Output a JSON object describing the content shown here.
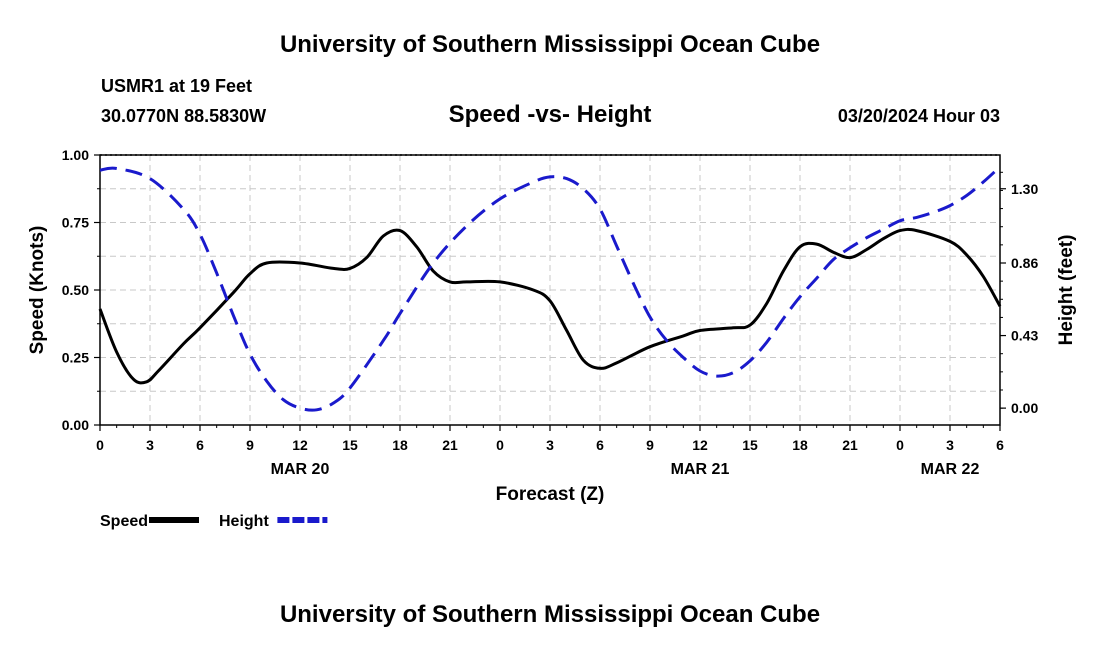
{
  "page": {
    "title_top": "University of Southern Mississippi Ocean Cube",
    "title_bottom": "University of Southern Mississippi Ocean Cube",
    "station": "USMR1 at 19 Feet",
    "coords": "30.0770N  88.5830W",
    "chart_title": "Speed -vs- Height",
    "datetime": "03/20/2024 Hour 03"
  },
  "chart_data": {
    "type": "line",
    "title": "Speed -vs- Height",
    "xlabel": "Forecast (Z)",
    "ylabel_left": "Speed (Knots)",
    "ylabel_right": "Height (feet)",
    "x_hours": [
      0,
      54
    ],
    "x_ticks": [
      {
        "h": 0,
        "label": "0"
      },
      {
        "h": 3,
        "label": "3"
      },
      {
        "h": 6,
        "label": "6"
      },
      {
        "h": 9,
        "label": "9"
      },
      {
        "h": 12,
        "label": "12"
      },
      {
        "h": 15,
        "label": "15"
      },
      {
        "h": 18,
        "label": "18"
      },
      {
        "h": 21,
        "label": "21"
      },
      {
        "h": 24,
        "label": "0"
      },
      {
        "h": 27,
        "label": "3"
      },
      {
        "h": 30,
        "label": "6"
      },
      {
        "h": 33,
        "label": "9"
      },
      {
        "h": 36,
        "label": "12"
      },
      {
        "h": 39,
        "label": "15"
      },
      {
        "h": 42,
        "label": "18"
      },
      {
        "h": 45,
        "label": "21"
      },
      {
        "h": 48,
        "label": "0"
      },
      {
        "h": 51,
        "label": "3"
      },
      {
        "h": 54,
        "label": "6"
      }
    ],
    "date_labels": [
      {
        "h": 12,
        "label": "MAR 20"
      },
      {
        "h": 36,
        "label": "MAR 21"
      },
      {
        "h": 51,
        "label": "MAR 22"
      }
    ],
    "ylim_left": [
      0,
      1
    ],
    "yticks_left": [
      {
        "v": 0,
        "label": "0.00"
      },
      {
        "v": 0.25,
        "label": "0.25"
      },
      {
        "v": 0.5,
        "label": "0.50"
      },
      {
        "v": 0.75,
        "label": "0.75"
      },
      {
        "v": 1.0,
        "label": "1.00"
      }
    ],
    "ylim_right": [
      -0.1,
      1.5
    ],
    "yticks_right": [
      {
        "v": 0.0,
        "label": "0.00"
      },
      {
        "v": 0.43,
        "label": "0.43"
      },
      {
        "v": 0.86,
        "label": "0.86"
      },
      {
        "v": 1.3,
        "label": "1.30"
      }
    ],
    "grid": true,
    "series": [
      {
        "name": "Speed",
        "axis": "left",
        "color": "#000000",
        "style": "solid",
        "points": [
          [
            0,
            0.43
          ],
          [
            1,
            0.27
          ],
          [
            2,
            0.17
          ],
          [
            2.8,
            0.16
          ],
          [
            3.5,
            0.2
          ],
          [
            5,
            0.3
          ],
          [
            6,
            0.36
          ],
          [
            8,
            0.49
          ],
          [
            9,
            0.56
          ],
          [
            10,
            0.6
          ],
          [
            12,
            0.6
          ],
          [
            14,
            0.58
          ],
          [
            15,
            0.58
          ],
          [
            16,
            0.62
          ],
          [
            17,
            0.7
          ],
          [
            18,
            0.72
          ],
          [
            19,
            0.66
          ],
          [
            20,
            0.57
          ],
          [
            21,
            0.53
          ],
          [
            22,
            0.53
          ],
          [
            24,
            0.53
          ],
          [
            26,
            0.5
          ],
          [
            27,
            0.46
          ],
          [
            28,
            0.35
          ],
          [
            29,
            0.24
          ],
          [
            30,
            0.21
          ],
          [
            31,
            0.23
          ],
          [
            33,
            0.29
          ],
          [
            35,
            0.33
          ],
          [
            36,
            0.35
          ],
          [
            38,
            0.36
          ],
          [
            39,
            0.37
          ],
          [
            40,
            0.45
          ],
          [
            41,
            0.57
          ],
          [
            42,
            0.66
          ],
          [
            43,
            0.67
          ],
          [
            44,
            0.64
          ],
          [
            45,
            0.62
          ],
          [
            46,
            0.65
          ],
          [
            47,
            0.69
          ],
          [
            48,
            0.72
          ],
          [
            49,
            0.72
          ],
          [
            51,
            0.68
          ],
          [
            52,
            0.63
          ],
          [
            53,
            0.55
          ],
          [
            54,
            0.44
          ]
        ]
      },
      {
        "name": "Height",
        "axis": "right",
        "color": "#1a1acc",
        "style": "dashed",
        "points": [
          [
            0,
            1.41
          ],
          [
            1,
            1.42
          ],
          [
            3,
            1.36
          ],
          [
            5,
            1.18
          ],
          [
            6,
            1.03
          ],
          [
            7,
            0.8
          ],
          [
            8,
            0.55
          ],
          [
            9,
            0.32
          ],
          [
            10,
            0.16
          ],
          [
            11,
            0.05
          ],
          [
            12,
            0.0
          ],
          [
            13,
            -0.01
          ],
          [
            14,
            0.03
          ],
          [
            15,
            0.12
          ],
          [
            17,
            0.4
          ],
          [
            18,
            0.56
          ],
          [
            20,
            0.86
          ],
          [
            22,
            1.08
          ],
          [
            24,
            1.24
          ],
          [
            26,
            1.34
          ],
          [
            27,
            1.37
          ],
          [
            28,
            1.36
          ],
          [
            29,
            1.3
          ],
          [
            30,
            1.18
          ],
          [
            31,
            0.96
          ],
          [
            32,
            0.74
          ],
          [
            33,
            0.54
          ],
          [
            34,
            0.4
          ],
          [
            35,
            0.3
          ],
          [
            36,
            0.22
          ],
          [
            37,
            0.19
          ],
          [
            38,
            0.21
          ],
          [
            39,
            0.28
          ],
          [
            40,
            0.39
          ],
          [
            41,
            0.53
          ],
          [
            42,
            0.66
          ],
          [
            43,
            0.77
          ],
          [
            44,
            0.88
          ],
          [
            45,
            0.95
          ],
          [
            46,
            1.01
          ],
          [
            47,
            1.06
          ],
          [
            48,
            1.11
          ],
          [
            49,
            1.13
          ],
          [
            50,
            1.16
          ],
          [
            51,
            1.2
          ],
          [
            52,
            1.26
          ],
          [
            53,
            1.34
          ],
          [
            54,
            1.43
          ]
        ]
      }
    ],
    "legend": [
      {
        "label": "Speed",
        "color": "#000000",
        "style": "solid"
      },
      {
        "label": "Height",
        "color": "#1a1acc",
        "style": "dashed"
      }
    ]
  }
}
